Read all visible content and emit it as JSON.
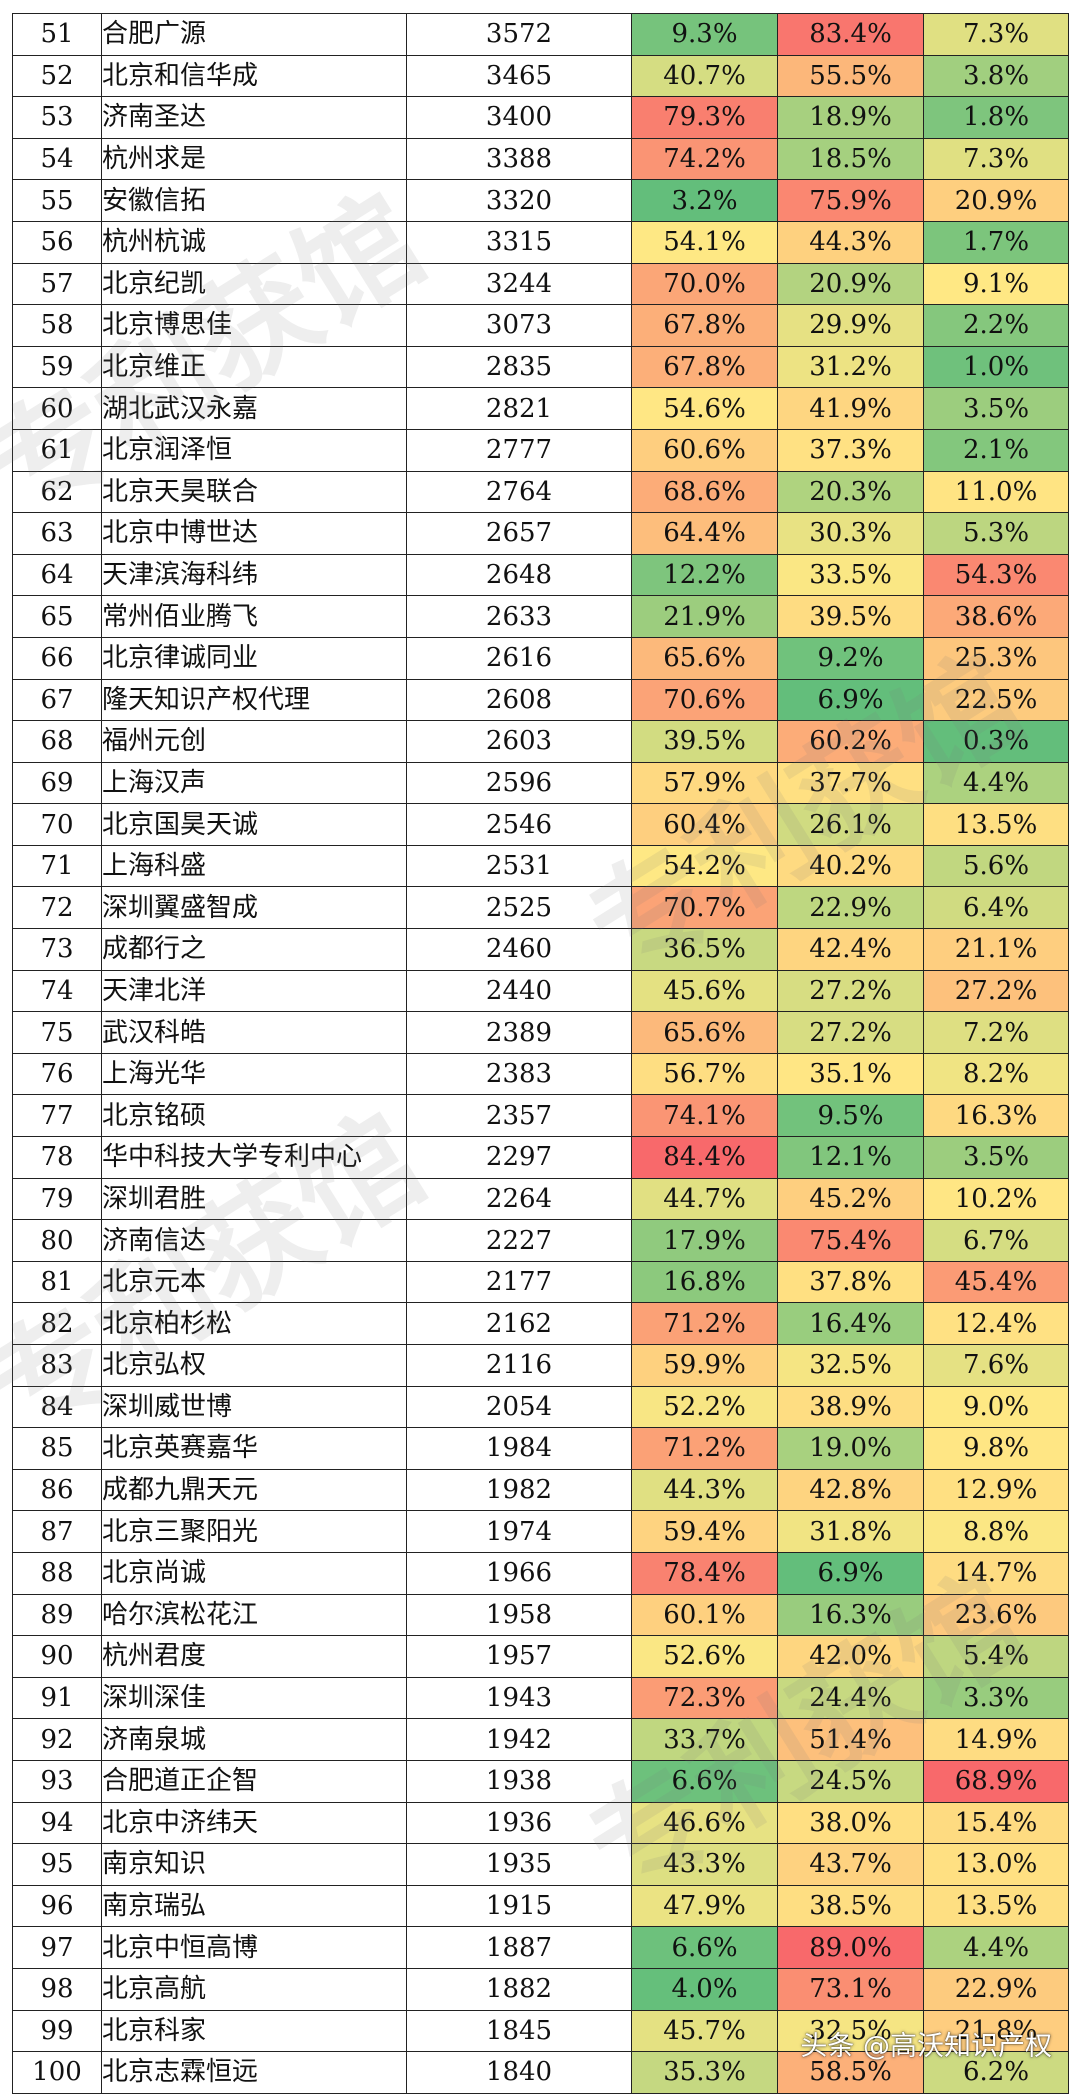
{
  "colors": {
    "low": "#63be7b",
    "mid": "#ffe884",
    "high": "#f8696b"
  },
  "table": {
    "rows": [
      {
        "no": "51",
        "name": "合肥广源",
        "count": "3572",
        "p1": "9.3%",
        "p2": "83.4%",
        "p3": "7.3%"
      },
      {
        "no": "52",
        "name": "北京和信华成",
        "count": "3465",
        "p1": "40.7%",
        "p2": "55.5%",
        "p3": "3.8%"
      },
      {
        "no": "53",
        "name": "济南圣达",
        "count": "3400",
        "p1": "79.3%",
        "p2": "18.9%",
        "p3": "1.8%"
      },
      {
        "no": "54",
        "name": "杭州求是",
        "count": "3388",
        "p1": "74.2%",
        "p2": "18.5%",
        "p3": "7.3%"
      },
      {
        "no": "55",
        "name": "安徽信拓",
        "count": "3320",
        "p1": "3.2%",
        "p2": "75.9%",
        "p3": "20.9%"
      },
      {
        "no": "56",
        "name": "杭州杭诚",
        "count": "3315",
        "p1": "54.1%",
        "p2": "44.3%",
        "p3": "1.7%"
      },
      {
        "no": "57",
        "name": "北京纪凯",
        "count": "3244",
        "p1": "70.0%",
        "p2": "20.9%",
        "p3": "9.1%"
      },
      {
        "no": "58",
        "name": "北京博思佳",
        "count": "3073",
        "p1": "67.8%",
        "p2": "29.9%",
        "p3": "2.2%"
      },
      {
        "no": "59",
        "name": "北京维正",
        "count": "2835",
        "p1": "67.8%",
        "p2": "31.2%",
        "p3": "1.0%"
      },
      {
        "no": "60",
        "name": "湖北武汉永嘉",
        "count": "2821",
        "p1": "54.6%",
        "p2": "41.9%",
        "p3": "3.5%"
      },
      {
        "no": "61",
        "name": "北京润泽恒",
        "count": "2777",
        "p1": "60.6%",
        "p2": "37.3%",
        "p3": "2.1%"
      },
      {
        "no": "62",
        "name": "北京天昊联合",
        "count": "2764",
        "p1": "68.6%",
        "p2": "20.3%",
        "p3": "11.0%"
      },
      {
        "no": "63",
        "name": "北京中博世达",
        "count": "2657",
        "p1": "64.4%",
        "p2": "30.3%",
        "p3": "5.3%"
      },
      {
        "no": "64",
        "name": "天津滨海科纬",
        "count": "2648",
        "p1": "12.2%",
        "p2": "33.5%",
        "p3": "54.3%"
      },
      {
        "no": "65",
        "name": "常州佰业腾飞",
        "count": "2633",
        "p1": "21.9%",
        "p2": "39.5%",
        "p3": "38.6%"
      },
      {
        "no": "66",
        "name": "北京律诚同业",
        "count": "2616",
        "p1": "65.6%",
        "p2": "9.2%",
        "p3": "25.3%"
      },
      {
        "no": "67",
        "name": "隆天知识产权代理",
        "count": "2608",
        "p1": "70.6%",
        "p2": "6.9%",
        "p3": "22.5%"
      },
      {
        "no": "68",
        "name": "福州元创",
        "count": "2603",
        "p1": "39.5%",
        "p2": "60.2%",
        "p3": "0.3%"
      },
      {
        "no": "69",
        "name": "上海汉声",
        "count": "2596",
        "p1": "57.9%",
        "p2": "37.7%",
        "p3": "4.4%"
      },
      {
        "no": "70",
        "name": "北京国昊天诚",
        "count": "2546",
        "p1": "60.4%",
        "p2": "26.1%",
        "p3": "13.5%"
      },
      {
        "no": "71",
        "name": "上海科盛",
        "count": "2531",
        "p1": "54.2%",
        "p2": "40.2%",
        "p3": "5.6%"
      },
      {
        "no": "72",
        "name": "深圳翼盛智成",
        "count": "2525",
        "p1": "70.7%",
        "p2": "22.9%",
        "p3": "6.4%"
      },
      {
        "no": "73",
        "name": "成都行之",
        "count": "2460",
        "p1": "36.5%",
        "p2": "42.4%",
        "p3": "21.1%"
      },
      {
        "no": "74",
        "name": "天津北洋",
        "count": "2440",
        "p1": "45.6%",
        "p2": "27.2%",
        "p3": "27.2%"
      },
      {
        "no": "75",
        "name": "武汉科皓",
        "count": "2389",
        "p1": "65.6%",
        "p2": "27.2%",
        "p3": "7.2%"
      },
      {
        "no": "76",
        "name": "上海光华",
        "count": "2383",
        "p1": "56.7%",
        "p2": "35.1%",
        "p3": "8.2%"
      },
      {
        "no": "77",
        "name": "北京铭硕",
        "count": "2357",
        "p1": "74.1%",
        "p2": "9.5%",
        "p3": "16.3%"
      },
      {
        "no": "78",
        "name": "华中科技大学专利中心",
        "count": "2297",
        "p1": "84.4%",
        "p2": "12.1%",
        "p3": "3.5%"
      },
      {
        "no": "79",
        "name": "深圳君胜",
        "count": "2264",
        "p1": "44.7%",
        "p2": "45.2%",
        "p3": "10.2%"
      },
      {
        "no": "80",
        "name": "济南信达",
        "count": "2227",
        "p1": "17.9%",
        "p2": "75.4%",
        "p3": "6.7%"
      },
      {
        "no": "81",
        "name": "北京元本",
        "count": "2177",
        "p1": "16.8%",
        "p2": "37.8%",
        "p3": "45.4%"
      },
      {
        "no": "82",
        "name": "北京柏杉松",
        "count": "2162",
        "p1": "71.2%",
        "p2": "16.4%",
        "p3": "12.4%"
      },
      {
        "no": "83",
        "name": "北京弘权",
        "count": "2116",
        "p1": "59.9%",
        "p2": "32.5%",
        "p3": "7.6%"
      },
      {
        "no": "84",
        "name": "深圳威世博",
        "count": "2054",
        "p1": "52.2%",
        "p2": "38.9%",
        "p3": "9.0%"
      },
      {
        "no": "85",
        "name": "北京英赛嘉华",
        "count": "1984",
        "p1": "71.2%",
        "p2": "19.0%",
        "p3": "9.8%"
      },
      {
        "no": "86",
        "name": "成都九鼎天元",
        "count": "1982",
        "p1": "44.3%",
        "p2": "42.8%",
        "p3": "12.9%"
      },
      {
        "no": "87",
        "name": "北京三聚阳光",
        "count": "1974",
        "p1": "59.4%",
        "p2": "31.8%",
        "p3": "8.8%"
      },
      {
        "no": "88",
        "name": "北京尚诚",
        "count": "1966",
        "p1": "78.4%",
        "p2": "6.9%",
        "p3": "14.7%"
      },
      {
        "no": "89",
        "name": "哈尔滨松花江",
        "count": "1958",
        "p1": "60.1%",
        "p2": "16.3%",
        "p3": "23.6%"
      },
      {
        "no": "90",
        "name": "杭州君度",
        "count": "1957",
        "p1": "52.6%",
        "p2": "42.0%",
        "p3": "5.4%"
      },
      {
        "no": "91",
        "name": "深圳深佳",
        "count": "1943",
        "p1": "72.3%",
        "p2": "24.4%",
        "p3": "3.3%"
      },
      {
        "no": "92",
        "name": "济南泉城",
        "count": "1942",
        "p1": "33.7%",
        "p2": "51.4%",
        "p3": "14.9%"
      },
      {
        "no": "93",
        "name": "合肥道正企智",
        "count": "1938",
        "p1": "6.6%",
        "p2": "24.5%",
        "p3": "68.9%"
      },
      {
        "no": "94",
        "name": "北京中济纬天",
        "count": "1936",
        "p1": "46.6%",
        "p2": "38.0%",
        "p3": "15.4%"
      },
      {
        "no": "95",
        "name": "南京知识",
        "count": "1935",
        "p1": "43.3%",
        "p2": "43.7%",
        "p3": "13.0%"
      },
      {
        "no": "96",
        "name": "南京瑞弘",
        "count": "1915",
        "p1": "47.9%",
        "p2": "38.5%",
        "p3": "13.5%"
      },
      {
        "no": "97",
        "name": "北京中恒高博",
        "count": "1887",
        "p1": "6.6%",
        "p2": "89.0%",
        "p3": "4.4%"
      },
      {
        "no": "98",
        "name": "北京高航",
        "count": "1882",
        "p1": "4.0%",
        "p2": "73.1%",
        "p3": "22.9%"
      },
      {
        "no": "99",
        "name": "北京科家",
        "count": "1845",
        "p1": "45.7%",
        "p2": "32.5%",
        "p3": "21.8%"
      },
      {
        "no": "100",
        "name": "北京志霖恒远",
        "count": "1840",
        "p1": "35.3%",
        "p2": "58.5%",
        "p3": "6.2%"
      }
    ]
  },
  "watermark": {
    "text_left": "专利获馆",
    "text_right": "专利获馆"
  },
  "footer": {
    "credit": "头条 @高沃知识产权"
  }
}
